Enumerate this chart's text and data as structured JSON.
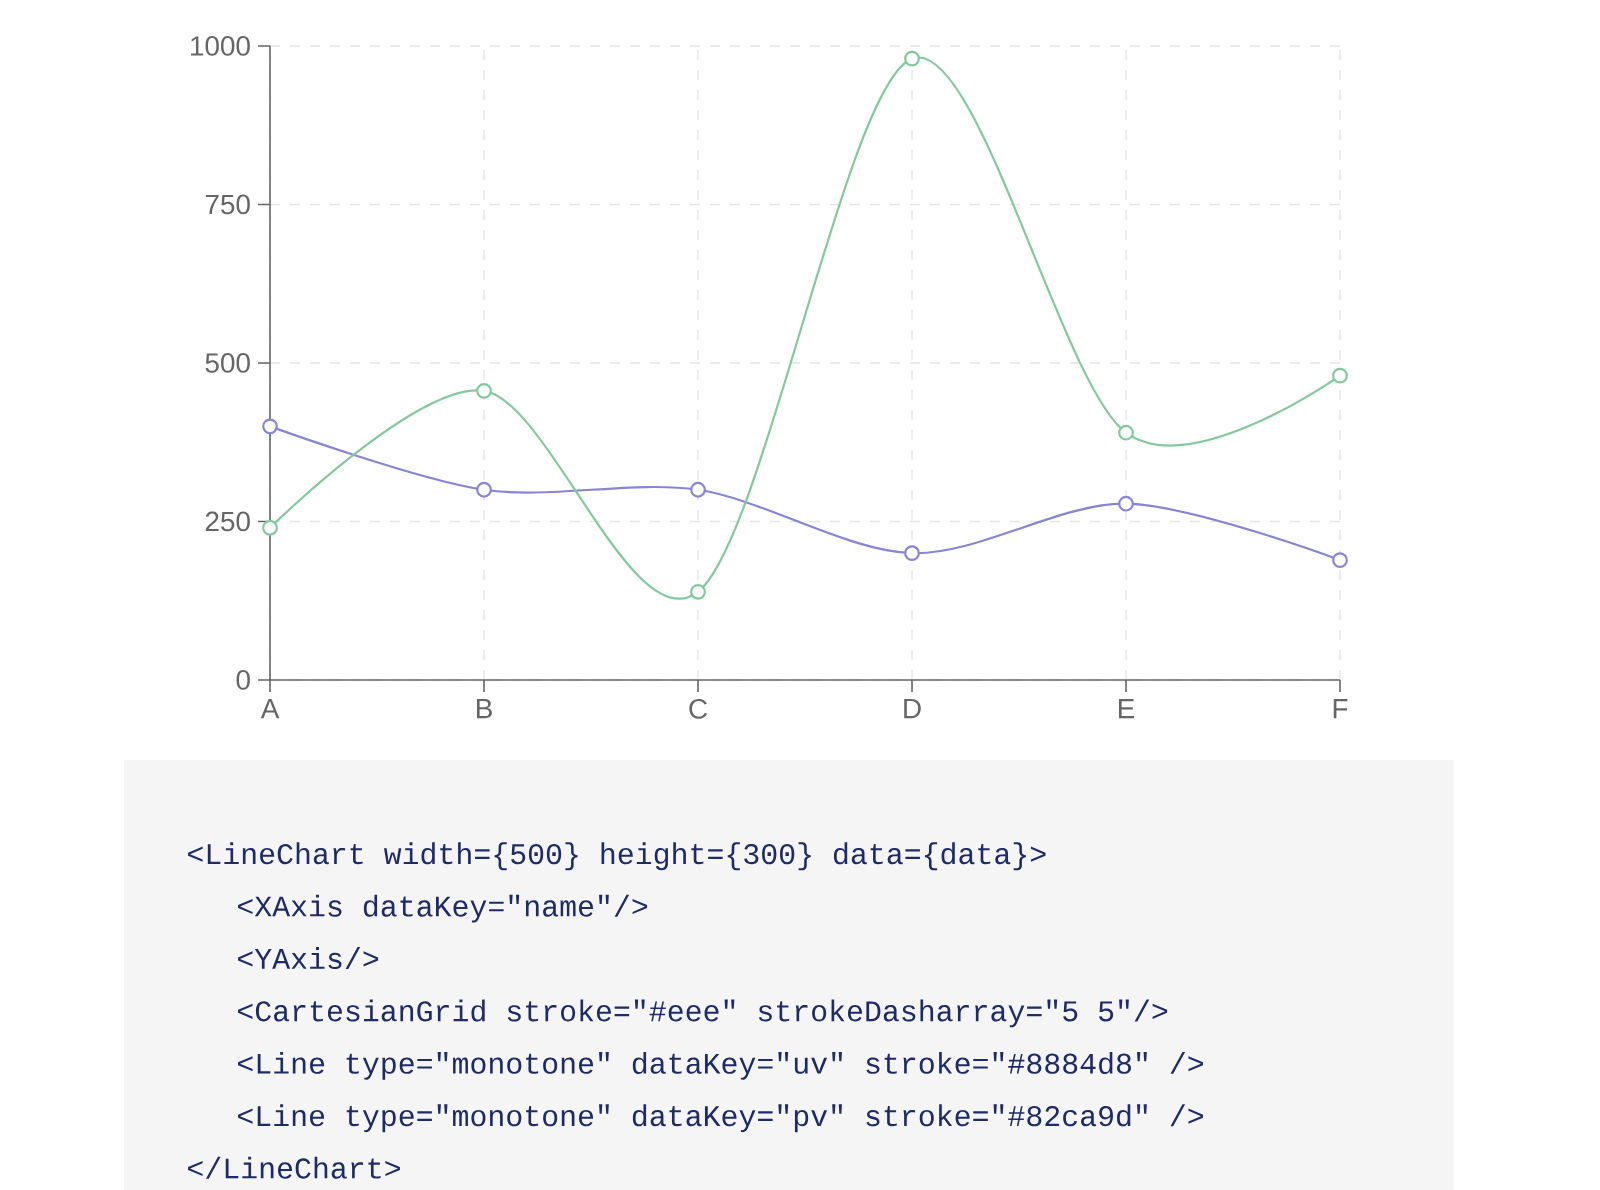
{
  "chart_data": {
    "type": "line",
    "categories": [
      "A",
      "B",
      "C",
      "D",
      "E",
      "F"
    ],
    "series": [
      {
        "color": "#8884d8",
        "values": [
          400,
          300,
          300,
          200,
          278,
          189
        ]
      },
      {
        "color": "#82ca9d",
        "values": [
          240,
          456,
          139,
          980,
          390,
          480
        ]
      }
    ],
    "ylim": [
      0,
      1000
    ],
    "yticks": [
      0,
      250,
      500,
      750,
      1000
    ],
    "grid": true,
    "marker": "circle",
    "line_style": "solid",
    "annotations": [
      "<LineChart width={500} height={300} data={data}>",
      "  <XAxis dataKey=\"name\"/>",
      "  <YAxis/>",
      "  <CartesianGrid stroke=\"#eee\" strokeDasharray=\"5 5\"/>",
      "  <Line type=\"monotone\" dataKey=\"uv\" stroke=\"#8884d8\" />",
      "  <Line type=\"monotone\" dataKey=\"pv\" stroke=\"#82ca9d\" />",
      "</LineChart>"
    ]
  }
}
